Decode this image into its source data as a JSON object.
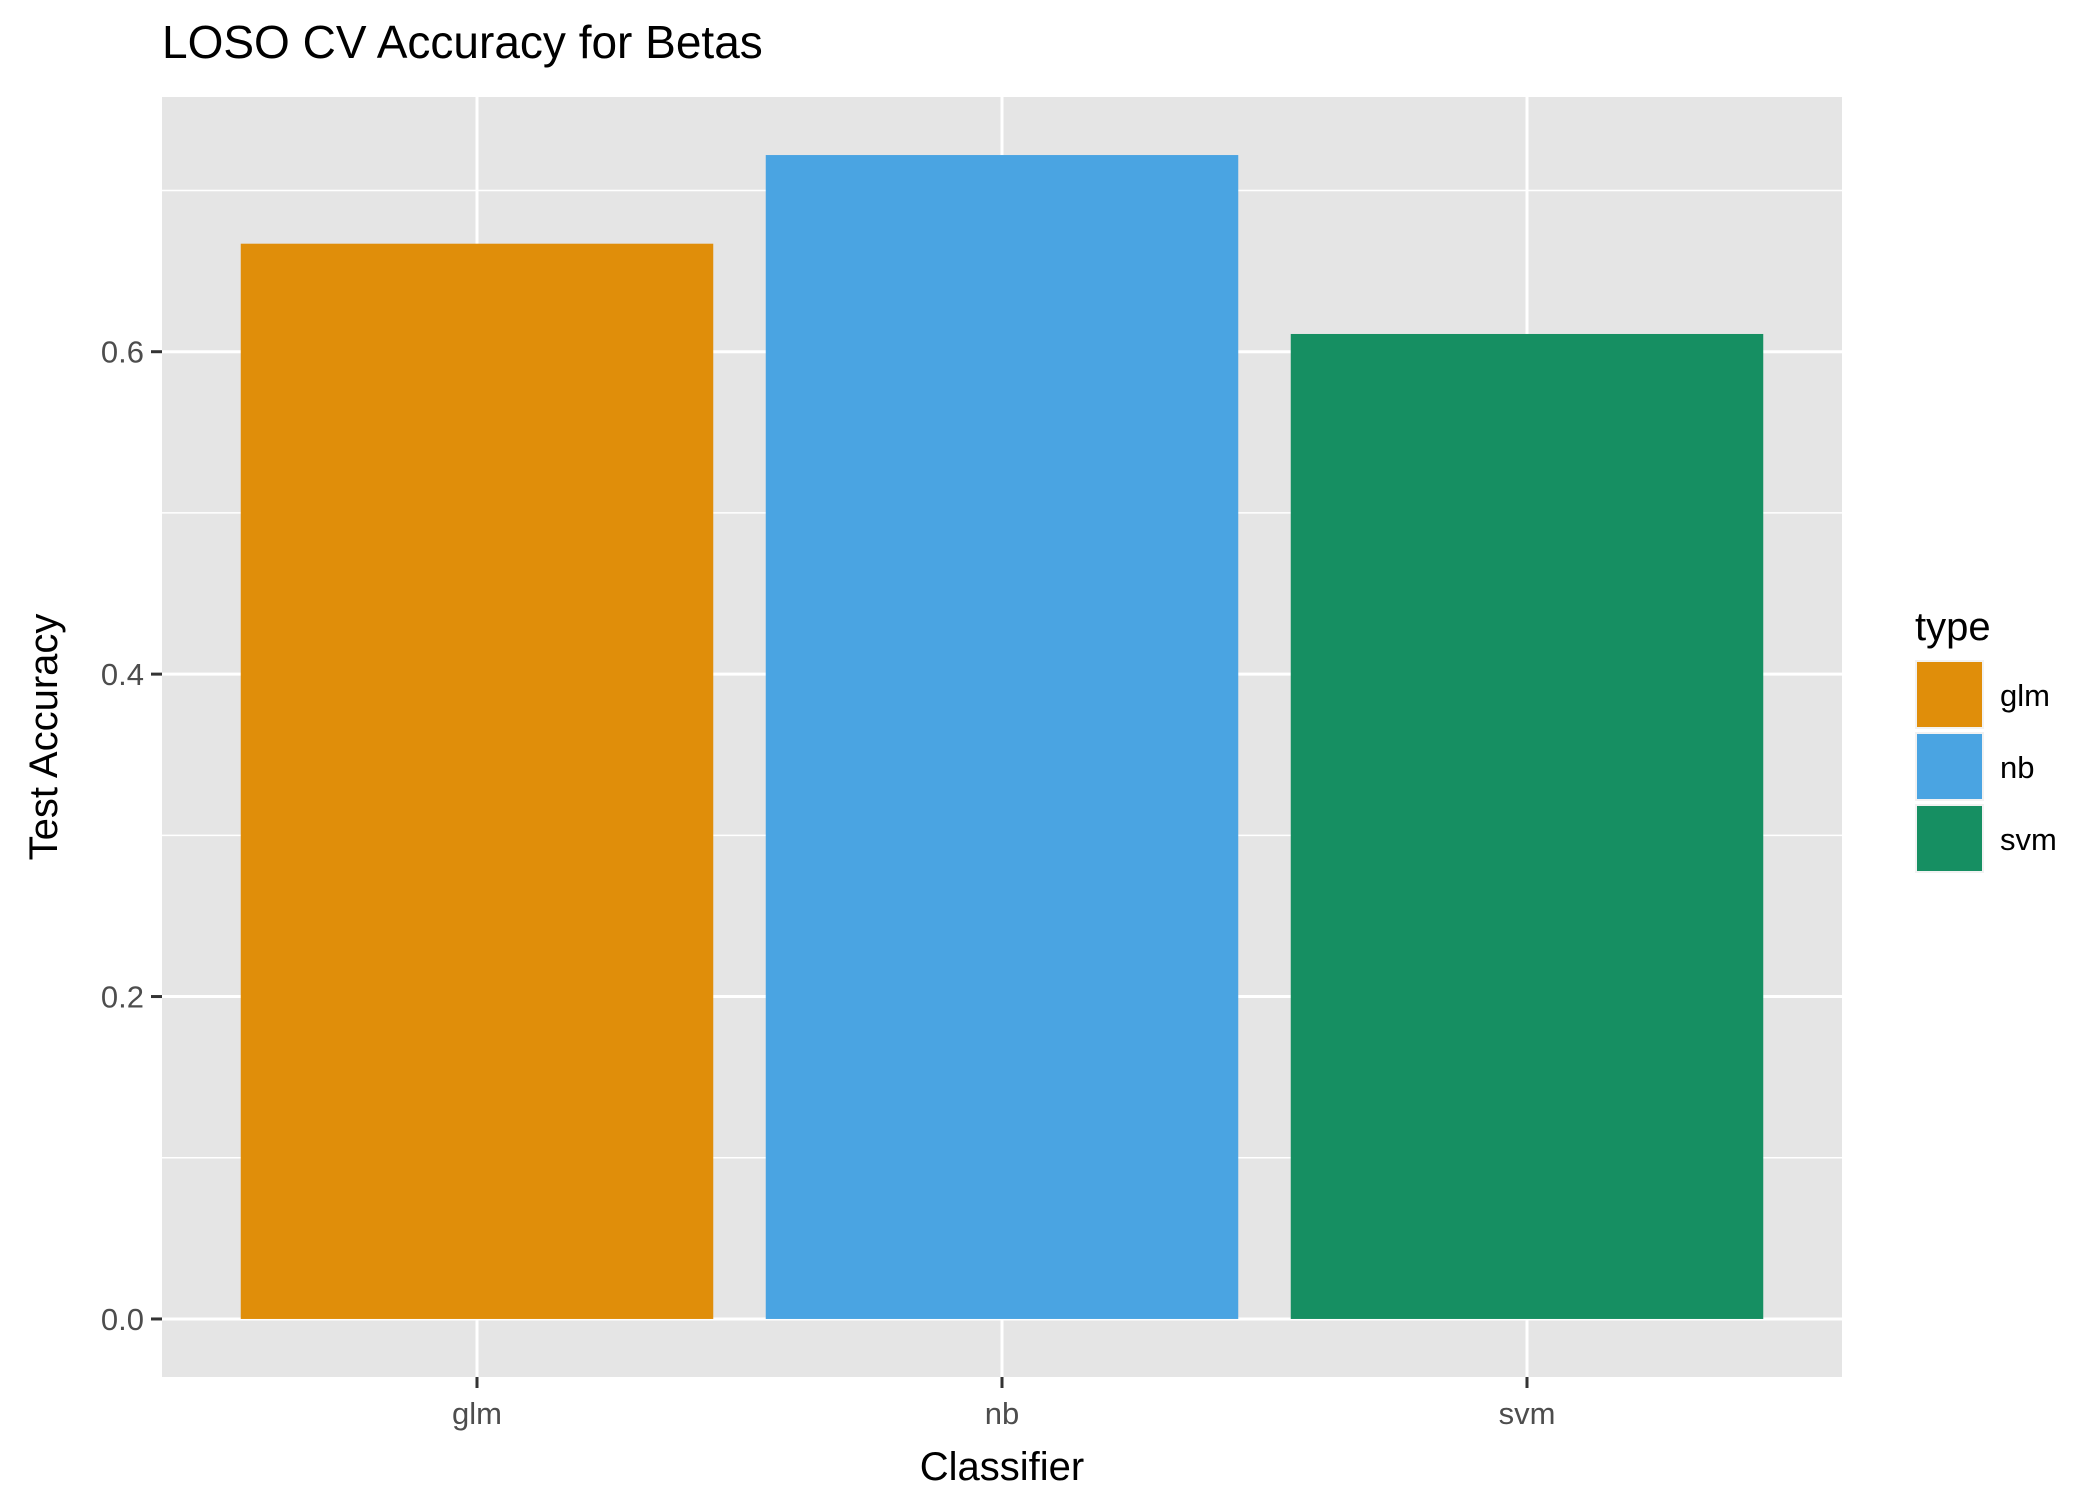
{
  "chart_data": {
    "type": "bar",
    "title": "LOSO CV Accuracy for Betas",
    "xlabel": "Classifier",
    "ylabel": "Test Accuracy",
    "categories": [
      "glm",
      "nb",
      "svm"
    ],
    "values": [
      0.667,
      0.722,
      0.611
    ],
    "colors": [
      "#E08E0A",
      "#4AA4E2",
      "#168F62"
    ],
    "ylim": [
      -0.036,
      0.758
    ],
    "yticks": [
      0.0,
      0.2,
      0.4,
      0.6
    ],
    "ytick_labels": [
      "0.0",
      "0.2",
      "0.4",
      "0.6"
    ],
    "grid": true,
    "panel_background": "#E5E5E5",
    "legend": {
      "title": "type",
      "position": "right",
      "entries": [
        {
          "label": "glm",
          "color": "#E08E0A"
        },
        {
          "label": "nb",
          "color": "#4AA4E2"
        },
        {
          "label": "svm",
          "color": "#168F62"
        }
      ]
    }
  }
}
